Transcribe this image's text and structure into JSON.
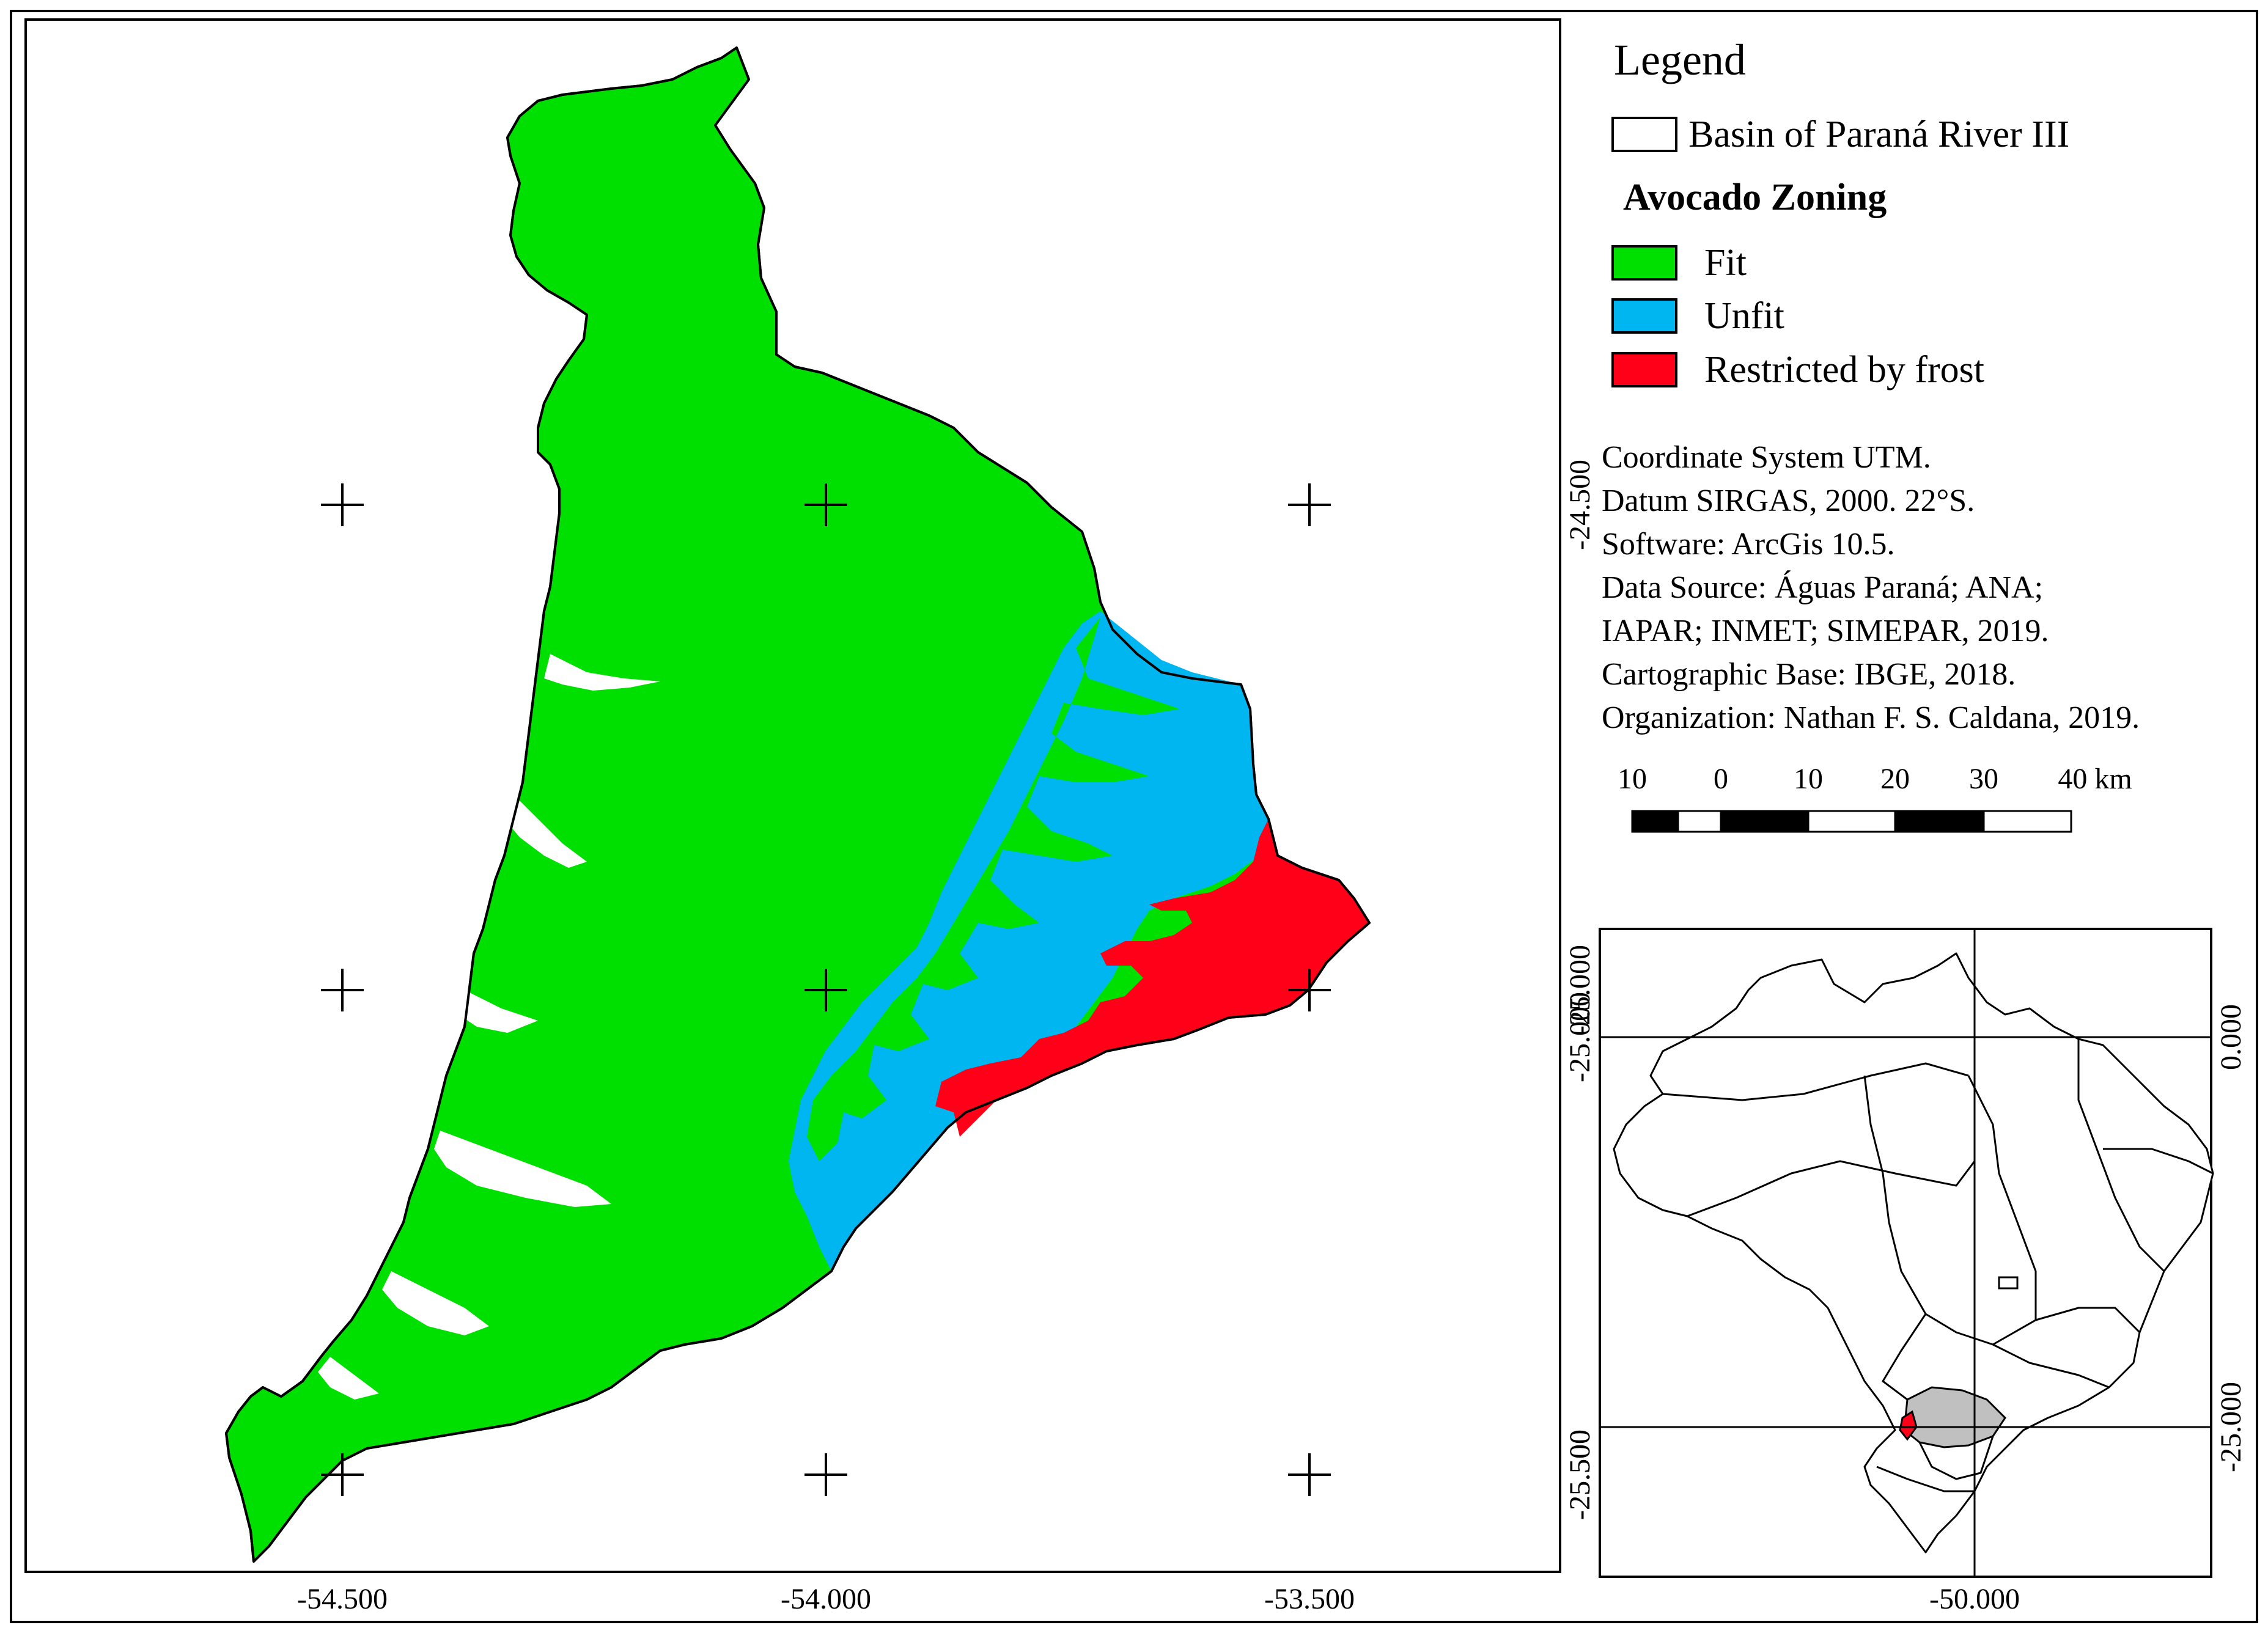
{
  "colors": {
    "fit": "#00e000",
    "unfit": "#00b6f0",
    "restricted": "#ff0018",
    "highlight_state": "#c0c0c0",
    "outline": "#000000",
    "background": "#ffffff"
  },
  "legend": {
    "title": "Legend",
    "basin_label": "Basin of Paraná River III",
    "zoning_heading": "Avocado Zoning",
    "classes": [
      {
        "label": "Fit",
        "color_key": "fit"
      },
      {
        "label": "Unfit",
        "color_key": "unfit"
      },
      {
        "label": "Restricted by frost",
        "color_key": "restricted"
      }
    ]
  },
  "metadata": {
    "lines": [
      "Coordinate System UTM.",
      "Datum SIRGAS, 2000. 22°S.",
      "Software: ArcGis 10.5.",
      "Data Source: Águas Paraná; ANA;",
      "IAPAR; INMET; SIMEPAR, 2019.",
      "Cartographic Base: IBGE, 2018.",
      "Organization: Nathan F. S. Caldana, 2019."
    ]
  },
  "scale_bar": {
    "labels": [
      "10",
      "0",
      "10",
      "20",
      "30",
      "40 km"
    ]
  },
  "main_map": {
    "x_ticks": [
      "-54.500",
      "-54.000",
      "-53.500"
    ],
    "y_ticks": [
      "-24.500",
      "-25.000",
      "-25.500"
    ]
  },
  "inset_map": {
    "x_tick": "-50.000",
    "y_left_ticks": [
      "-25.000",
      "-25.500"
    ],
    "y_right_ticks": [
      "0.000",
      "-25.000"
    ],
    "highlighted_region_color_key": "highlight_state"
  }
}
